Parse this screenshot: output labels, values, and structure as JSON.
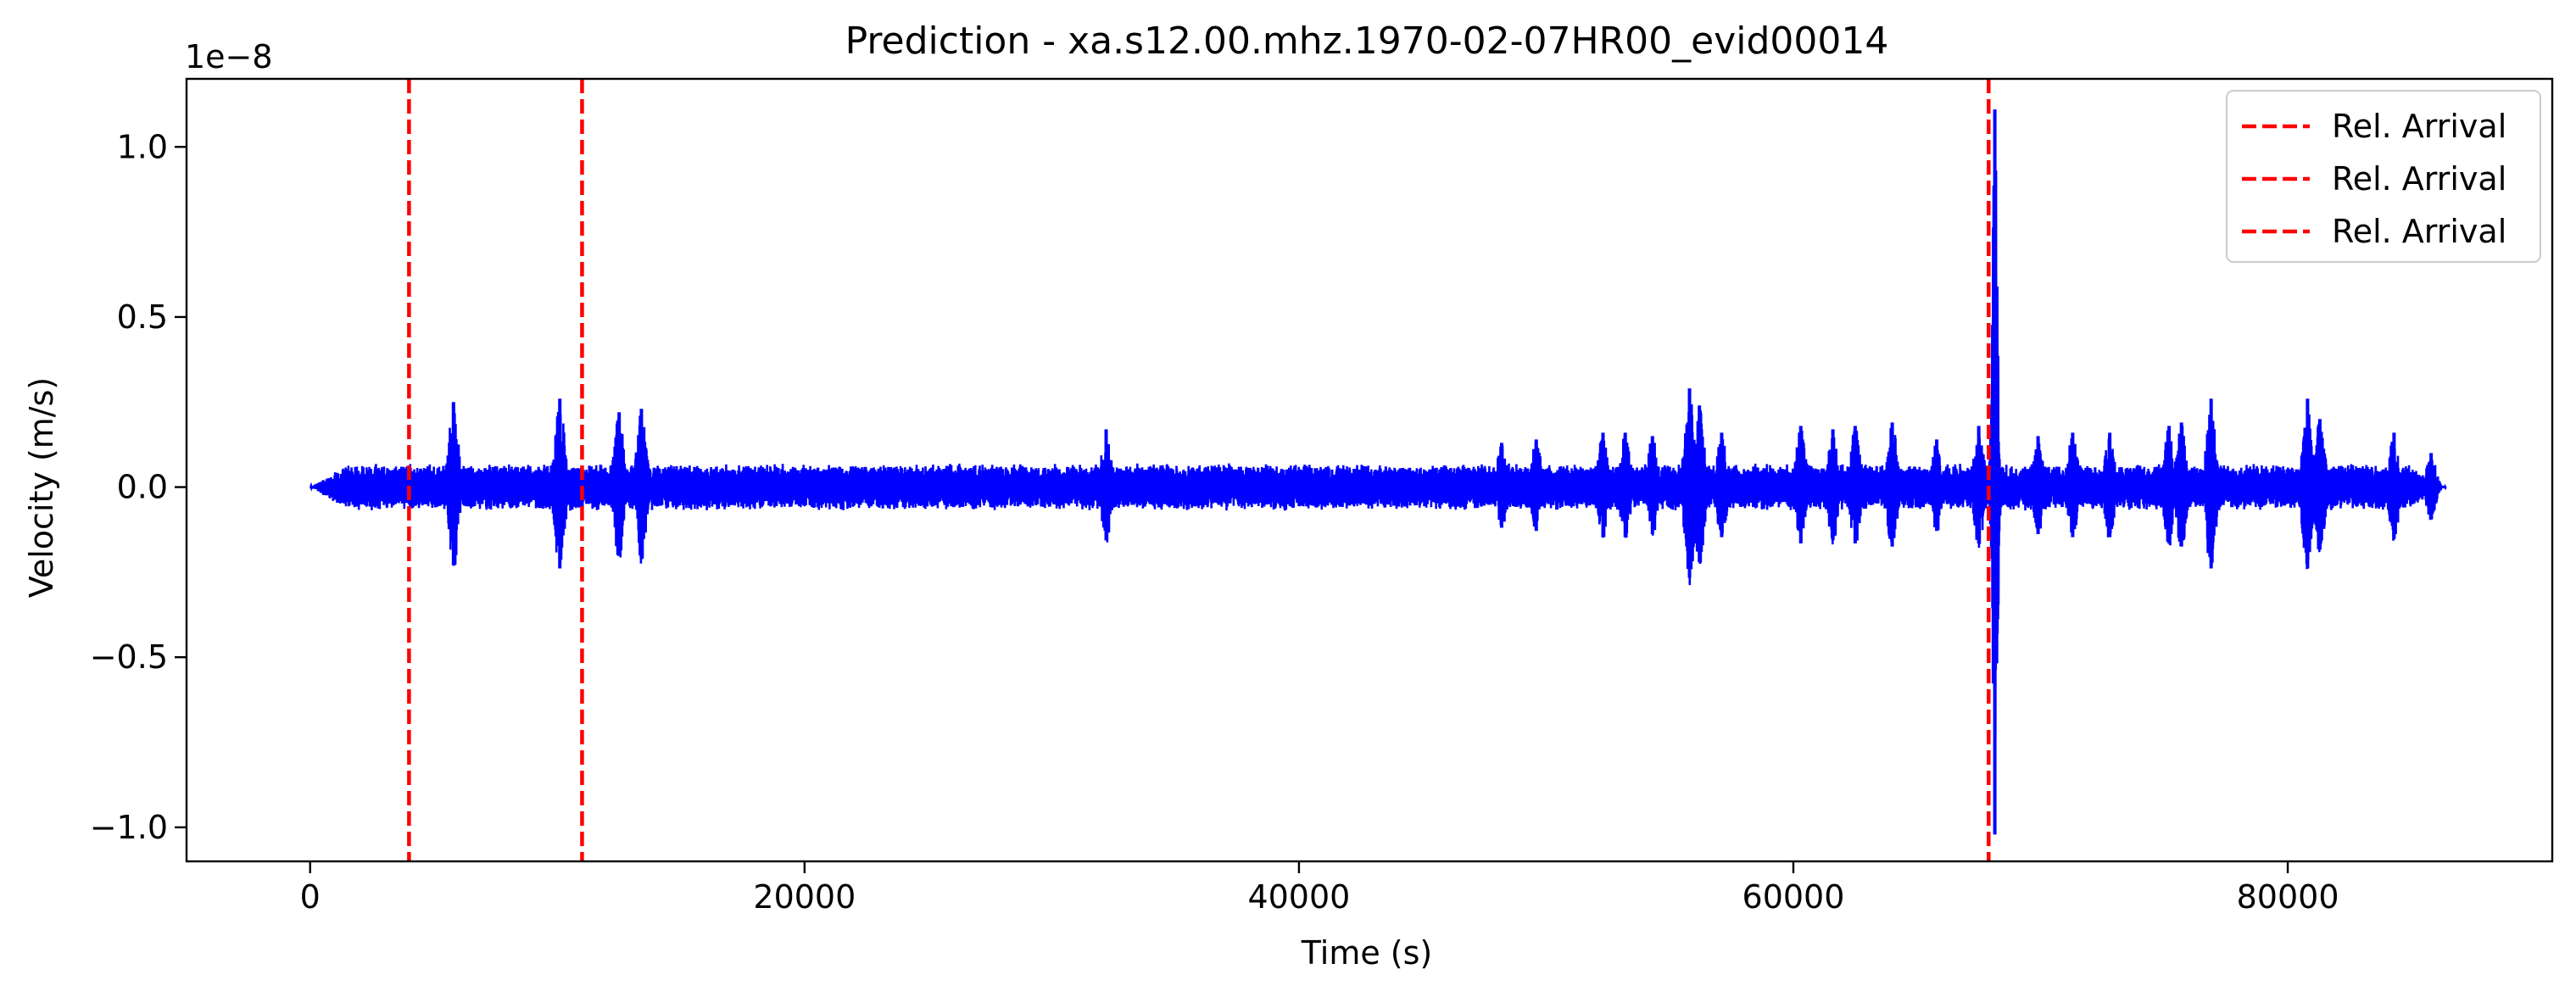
{
  "chart_data": {
    "type": "line",
    "title": "Prediction - xa.s12.00.mhz.1970-02-07HR00_evid00014",
    "xlabel": "Time (s)",
    "ylabel": "Velocity (m/s)",
    "y_offset_label": "1e−8",
    "xlim": [
      -5000,
      90700
    ],
    "ylim": [
      -1.1,
      1.2
    ],
    "y_scale_exponent": -8,
    "x_ticks": [
      0,
      20000,
      40000,
      60000,
      80000
    ],
    "x_tick_labels": [
      "0",
      "20000",
      "40000",
      "60000",
      "80000"
    ],
    "y_ticks": [
      -1.0,
      -0.5,
      0.0,
      0.5,
      1.0
    ],
    "y_tick_labels": [
      "−1.0",
      "−0.5",
      "0.0",
      "0.5",
      "1.0"
    ],
    "grid": false,
    "legend_position": "top-right",
    "series": [
      {
        "color": "#0000ff",
        "signal_extent": [
          0,
          86400
        ],
        "background_noise_amplitude": 0.07,
        "envelope_events": [
          {
            "t": 5800,
            "amp": 0.25
          },
          {
            "t": 10100,
            "amp": 0.26
          },
          {
            "t": 12500,
            "amp": 0.22
          },
          {
            "t": 13400,
            "amp": 0.23
          },
          {
            "t": 32200,
            "amp": 0.17
          },
          {
            "t": 48200,
            "amp": 0.13
          },
          {
            "t": 49600,
            "amp": 0.14
          },
          {
            "t": 52300,
            "amp": 0.16
          },
          {
            "t": 53200,
            "amp": 0.16
          },
          {
            "t": 54300,
            "amp": 0.15
          },
          {
            "t": 55800,
            "amp": 0.29
          },
          {
            "t": 56200,
            "amp": 0.24
          },
          {
            "t": 57100,
            "amp": 0.16
          },
          {
            "t": 60300,
            "amp": 0.18
          },
          {
            "t": 61600,
            "amp": 0.17
          },
          {
            "t": 62500,
            "amp": 0.18
          },
          {
            "t": 64000,
            "amp": 0.19
          },
          {
            "t": 65800,
            "amp": 0.14
          },
          {
            "t": 67500,
            "amp": 0.18
          },
          {
            "t": 68150,
            "amp": 1.11
          },
          {
            "t": 69900,
            "amp": 0.15
          },
          {
            "t": 71300,
            "amp": 0.16
          },
          {
            "t": 72800,
            "amp": 0.16
          },
          {
            "t": 75200,
            "amp": 0.18
          },
          {
            "t": 75700,
            "amp": 0.19
          },
          {
            "t": 76900,
            "amp": 0.26
          },
          {
            "t": 80800,
            "amp": 0.26
          },
          {
            "t": 81300,
            "amp": 0.2
          },
          {
            "t": 84300,
            "amp": 0.16
          },
          {
            "t": 85800,
            "amp": 0.1
          }
        ]
      }
    ],
    "vlines": [
      {
        "x": 4000,
        "label": "Rel. Arrival",
        "color": "#ff0000",
        "style": "dashed"
      },
      {
        "x": 11000,
        "label": "Rel. Arrival",
        "color": "#ff0000",
        "style": "dashed"
      },
      {
        "x": 67900,
        "label": "Rel. Arrival",
        "color": "#ff0000",
        "style": "dashed"
      }
    ],
    "legend": [
      "Rel. Arrival",
      "Rel. Arrival",
      "Rel. Arrival"
    ]
  }
}
